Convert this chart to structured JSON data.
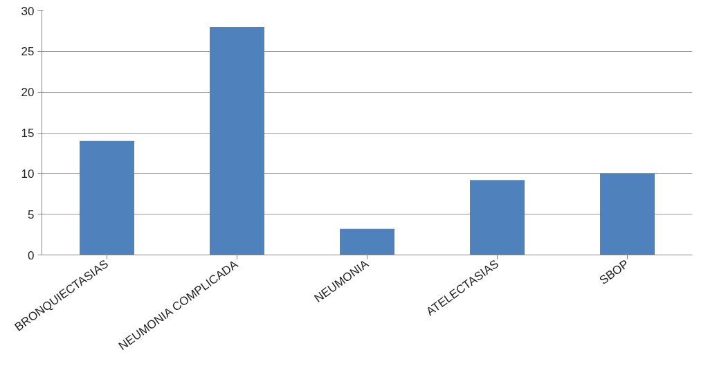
{
  "chart_data": {
    "type": "bar",
    "categories": [
      "BRONQUIECTASIAS",
      "NEUMONIA COMPLICADA",
      "NEUMONIA",
      "ATELECTASIAS",
      "SBOP"
    ],
    "values": [
      14,
      28,
      3.2,
      9.2,
      10
    ],
    "color": "#4f81bd",
    "ylim": [
      0,
      30
    ],
    "yticks": [
      0,
      5,
      10,
      15,
      20,
      25,
      30
    ],
    "grid": "y"
  }
}
